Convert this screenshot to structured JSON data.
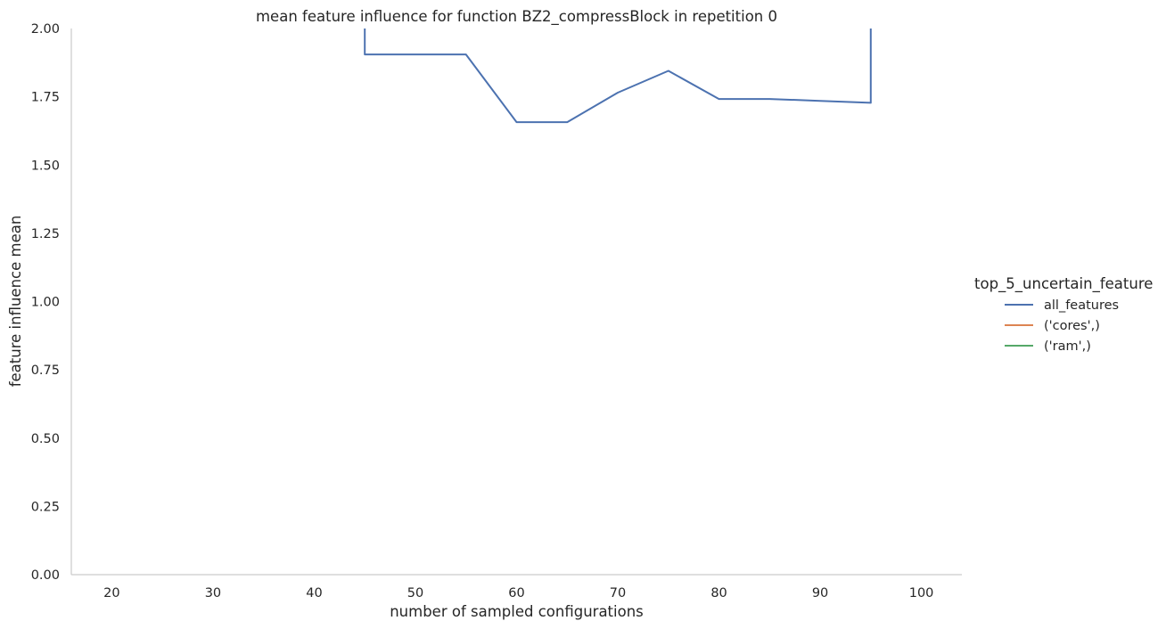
{
  "chart_data": {
    "type": "line",
    "title": "mean feature influence for function BZ2_compressBlock in repetition 0",
    "xlabel": "number of sampled configurations",
    "ylabel": "feature influence mean",
    "xlim": [
      16,
      104
    ],
    "ylim": [
      0,
      2.0
    ],
    "x_ticks": [
      20,
      30,
      40,
      50,
      60,
      70,
      80,
      90,
      100
    ],
    "x_tick_labels": [
      "20",
      "30",
      "40",
      "50",
      "60",
      "70",
      "80",
      "90",
      "100"
    ],
    "y_ticks": [
      0,
      0.25,
      0.5,
      0.75,
      1.0,
      1.25,
      1.5,
      1.75,
      2.0
    ],
    "y_tick_labels": [
      "0.00",
      "0.25",
      "0.50",
      "0.75",
      "1.00",
      "1.25",
      "1.50",
      "1.75",
      "2.00"
    ],
    "grid": false,
    "legend": {
      "title": "top_5_uncertain_feature",
      "placement": "right"
    },
    "series": [
      {
        "name": "all_features",
        "color": "#4c72b0",
        "x": [
          45,
          45,
          50,
          55,
          60,
          65,
          70,
          75,
          80,
          85,
          90,
          95,
          95
        ],
        "y": [
          2.15,
          1.905,
          1.905,
          1.905,
          1.657,
          1.657,
          1.765,
          1.845,
          1.742,
          1.742,
          1.735,
          1.728,
          2.15
        ]
      },
      {
        "name": "('cores',)",
        "color": "#dd8452",
        "x": [],
        "y": []
      },
      {
        "name": "('ram',)",
        "color": "#55a868",
        "x": [],
        "y": []
      }
    ]
  }
}
